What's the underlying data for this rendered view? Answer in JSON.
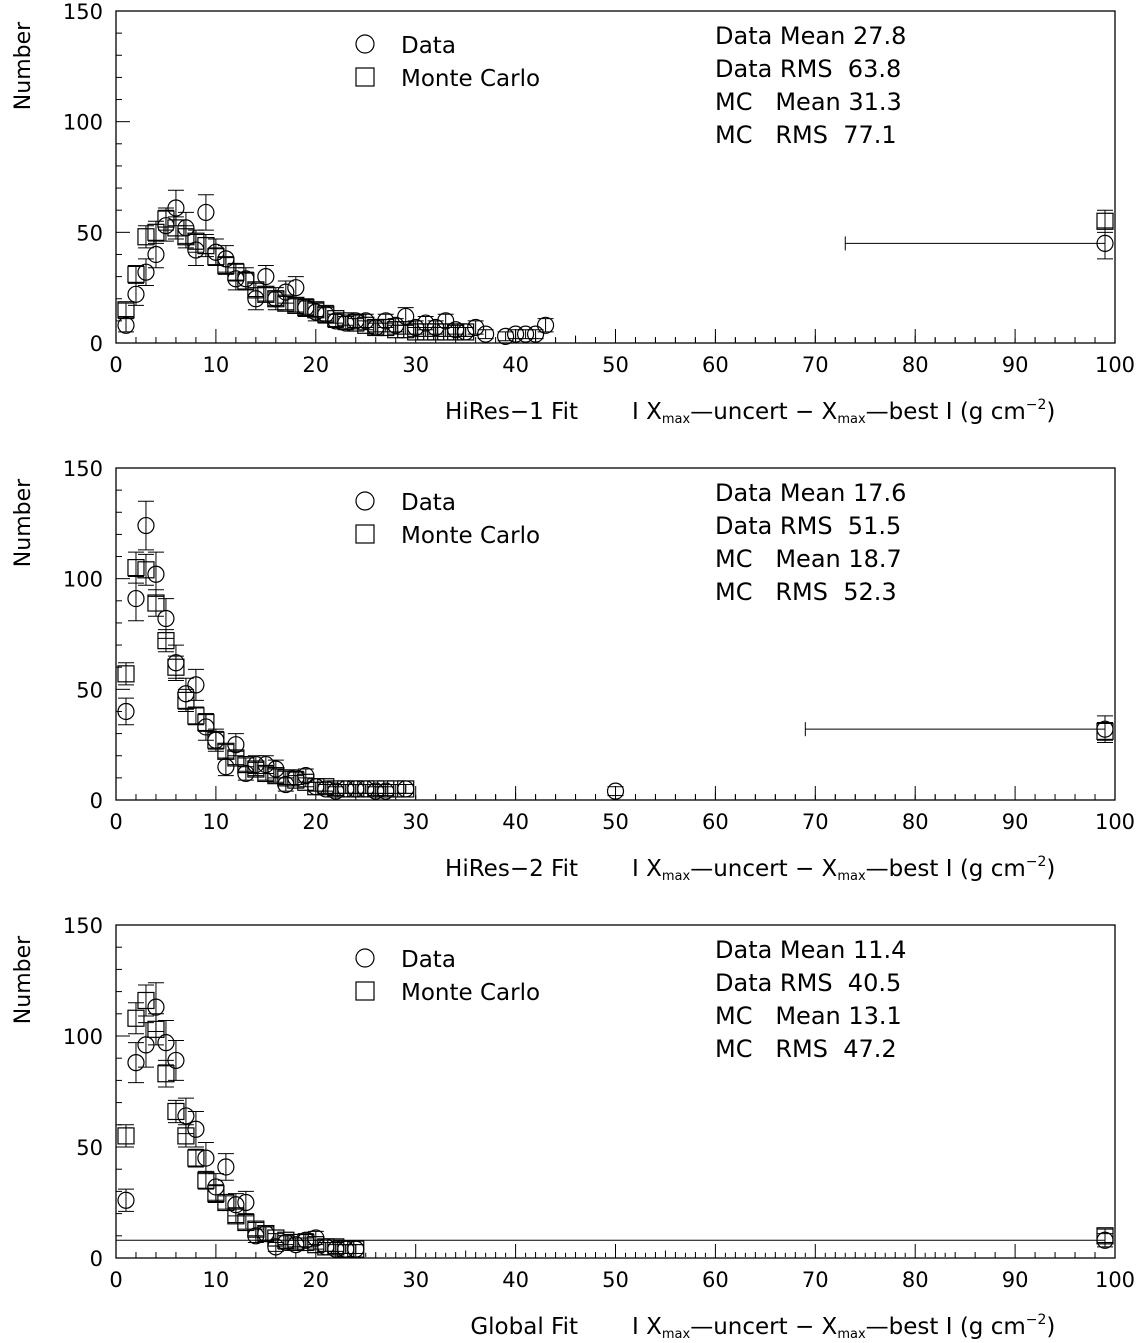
{
  "chart_data": [
    {
      "type": "scatter",
      "ylabel": "Number",
      "xlabel_prefix": "HiRes−1 Fit",
      "xlim": [
        0,
        100
      ],
      "ylim": [
        0,
        150
      ],
      "x_ticks": [
        "0",
        "10",
        "20",
        "30",
        "40",
        "50",
        "60",
        "70",
        "80",
        "90",
        "100"
      ],
      "y_ticks": [
        "0",
        "50",
        "100",
        "150"
      ],
      "legend": {
        "position": "top-center",
        "entries": [
          "Data",
          "Monte Carlo"
        ]
      },
      "stats": [
        "Data Mean 27.8",
        "Data RMS  63.8",
        "MC   Mean 31.3",
        "MC   RMS  77.1"
      ],
      "series": [
        {
          "name": "Data",
          "marker": "circle",
          "x": [
            1,
            2,
            3,
            4,
            5,
            6,
            7,
            8,
            9,
            10,
            11,
            12,
            13,
            14,
            15,
            16,
            17,
            18,
            19,
            20,
            21,
            22,
            23,
            24,
            25,
            26,
            27,
            28,
            29,
            30,
            31,
            32,
            33,
            34,
            35,
            36,
            37,
            39,
            40,
            41,
            42,
            43,
            99
          ],
          "y": [
            8,
            22,
            32,
            40,
            53,
            61,
            52,
            42,
            59,
            41,
            38,
            29,
            29,
            20,
            30,
            20,
            23,
            25,
            16,
            14,
            13,
            10,
            9,
            10,
            10,
            7,
            10,
            8,
            12,
            7,
            9,
            7,
            10,
            6,
            5,
            7,
            4,
            3,
            4,
            4,
            4,
            8,
            45
          ],
          "yerr": [
            3,
            5,
            6,
            6,
            7,
            8,
            7,
            7,
            8,
            6,
            6,
            5,
            5,
            5,
            5,
            5,
            5,
            5,
            4,
            4,
            4,
            3,
            3,
            3,
            3,
            3,
            3,
            3,
            4,
            3,
            3,
            3,
            3,
            2,
            2,
            3,
            2,
            2,
            2,
            2,
            2,
            3,
            7
          ]
        },
        {
          "name": "Monte Carlo",
          "marker": "square",
          "x": [
            1,
            2,
            3,
            4,
            5,
            6,
            7,
            8,
            9,
            10,
            11,
            12,
            13,
            14,
            15,
            16,
            17,
            18,
            19,
            20,
            21,
            22,
            23,
            24,
            25,
            26,
            27,
            28,
            29,
            30,
            31,
            32,
            33,
            34,
            35,
            99
          ],
          "y": [
            15,
            31,
            48,
            50,
            56,
            52,
            48,
            46,
            44,
            39,
            35,
            32,
            28,
            24,
            22,
            20,
            18,
            17,
            16,
            15,
            13,
            11,
            10,
            9,
            8,
            7,
            7,
            6,
            6,
            5,
            5,
            5,
            5,
            5,
            5,
            55
          ],
          "yerr": [
            3,
            4,
            5,
            5,
            5,
            5,
            5,
            5,
            5,
            4,
            4,
            4,
            4,
            3,
            3,
            3,
            3,
            3,
            3,
            3,
            3,
            2,
            2,
            2,
            2,
            2,
            2,
            2,
            2,
            2,
            2,
            2,
            2,
            2,
            2,
            5
          ]
        }
      ],
      "overflow_xrange": [
        73,
        99
      ],
      "stray_ticks_x": [
        40,
        42,
        44,
        46,
        48,
        50,
        52,
        54,
        56,
        58,
        60,
        62,
        64,
        66,
        68,
        70,
        72,
        74,
        76,
        78,
        80,
        82,
        84,
        86,
        88,
        90,
        92,
        94,
        96,
        98
      ],
      "stray_ticks_y": [
        1,
        1,
        1,
        2,
        1,
        1,
        1,
        1,
        1,
        1,
        2,
        1,
        1,
        1,
        1,
        2,
        1,
        1,
        1,
        1,
        2,
        1,
        1,
        1,
        1,
        1,
        1,
        1,
        1,
        1
      ]
    },
    {
      "type": "scatter",
      "ylabel": "Number",
      "xlabel_prefix": "HiRes−2 Fit",
      "xlim": [
        0,
        100
      ],
      "ylim": [
        0,
        150
      ],
      "x_ticks": [
        "0",
        "10",
        "20",
        "30",
        "40",
        "50",
        "60",
        "70",
        "80",
        "90",
        "100"
      ],
      "y_ticks": [
        "0",
        "50",
        "100",
        "150"
      ],
      "legend": {
        "position": "top-center",
        "entries": [
          "Data",
          "Monte Carlo"
        ]
      },
      "stats": [
        "Data Mean 17.6",
        "Data RMS  51.5",
        "MC   Mean 18.7",
        "MC   RMS  52.3"
      ],
      "series": [
        {
          "name": "Data",
          "marker": "circle",
          "x": [
            1,
            2,
            3,
            4,
            5,
            6,
            7,
            8,
            9,
            10,
            11,
            12,
            13,
            14,
            15,
            16,
            17,
            18,
            19,
            20,
            21,
            22,
            23,
            24,
            25,
            26,
            27,
            29,
            50,
            99
          ],
          "y": [
            40,
            91,
            124,
            102,
            82,
            62,
            48,
            52,
            33,
            27,
            15,
            25,
            12,
            16,
            16,
            14,
            7,
            10,
            11,
            6,
            5,
            4,
            5,
            5,
            5,
            4,
            4,
            5,
            4,
            32
          ],
          "yerr": [
            6,
            10,
            11,
            10,
            9,
            8,
            7,
            7,
            6,
            5,
            4,
            5,
            3,
            4,
            4,
            4,
            3,
            3,
            3,
            2,
            2,
            2,
            2,
            2,
            2,
            2,
            2,
            2,
            2,
            6
          ]
        },
        {
          "name": "Monte Carlo",
          "marker": "square",
          "x": [
            1,
            2,
            3,
            4,
            5,
            6,
            7,
            8,
            9,
            10,
            11,
            12,
            13,
            14,
            15,
            16,
            17,
            18,
            19,
            20,
            21,
            22,
            23,
            24,
            25,
            26,
            27,
            28,
            29,
            99
          ],
          "y": [
            57,
            105,
            104,
            89,
            72,
            60,
            45,
            38,
            35,
            27,
            22,
            19,
            16,
            14,
            12,
            11,
            10,
            9,
            8,
            6,
            6,
            5,
            5,
            5,
            5,
            5,
            5,
            5,
            5,
            31
          ],
          "yerr": [
            5,
            7,
            7,
            6,
            5,
            5,
            5,
            4,
            4,
            4,
            3,
            3,
            3,
            3,
            3,
            3,
            3,
            2,
            2,
            2,
            2,
            2,
            2,
            2,
            2,
            2,
            2,
            2,
            2,
            4
          ]
        }
      ],
      "overflow_xrange": [
        69,
        99
      ],
      "stray_ticks_x": [
        30,
        32,
        34,
        36,
        38,
        40,
        42,
        44,
        46,
        48,
        50,
        52,
        54,
        56,
        58,
        60,
        62,
        64,
        66,
        68,
        70,
        72,
        74,
        76,
        78,
        80,
        82,
        84,
        86,
        88
      ],
      "stray_ticks_y": [
        1,
        1,
        1,
        1,
        1,
        2,
        1,
        1,
        1,
        1,
        2,
        1,
        1,
        1,
        1,
        2,
        1,
        1,
        1,
        1,
        1,
        1,
        1,
        1,
        1,
        1,
        1,
        1,
        1,
        1
      ]
    },
    {
      "type": "scatter",
      "ylabel": "Number",
      "xlabel_prefix": "Global Fit",
      "xlim": [
        0,
        100
      ],
      "ylim": [
        0,
        150
      ],
      "x_ticks": [
        "0",
        "10",
        "20",
        "30",
        "40",
        "50",
        "60",
        "70",
        "80",
        "90",
        "100"
      ],
      "y_ticks": [
        "0",
        "50",
        "100",
        "150"
      ],
      "legend": {
        "position": "top-center",
        "entries": [
          "Data",
          "Monte Carlo"
        ]
      },
      "stats": [
        "Data Mean 11.4",
        "Data RMS  40.5",
        "MC   Mean 13.1",
        "MC   RMS  47.2"
      ],
      "series": [
        {
          "name": "Data",
          "marker": "circle",
          "x": [
            1,
            2,
            3,
            4,
            5,
            6,
            7,
            8,
            9,
            10,
            11,
            12,
            13,
            14,
            15,
            16,
            17,
            18,
            19,
            20,
            21,
            22,
            23,
            24,
            99
          ],
          "y": [
            26,
            88,
            96,
            113,
            97,
            89,
            64,
            58,
            45,
            32,
            41,
            24,
            25,
            10,
            11,
            5,
            7,
            6,
            8,
            9,
            5,
            4,
            4,
            4,
            8
          ],
          "yerr": [
            5,
            9,
            10,
            11,
            10,
            9,
            8,
            8,
            7,
            6,
            6,
            5,
            5,
            3,
            3,
            2,
            3,
            2,
            3,
            3,
            2,
            2,
            2,
            2,
            3
          ]
        },
        {
          "name": "Monte Carlo",
          "marker": "square",
          "x": [
            1,
            2,
            3,
            4,
            5,
            6,
            7,
            8,
            9,
            10,
            11,
            12,
            13,
            14,
            15,
            16,
            17,
            18,
            19,
            20,
            21,
            22,
            23,
            24,
            99
          ],
          "y": [
            55,
            108,
            116,
            103,
            83,
            66,
            55,
            45,
            35,
            29,
            25,
            19,
            16,
            13,
            11,
            9,
            8,
            7,
            7,
            6,
            5,
            5,
            4,
            4,
            10
          ],
          "yerr": [
            5,
            7,
            7,
            7,
            6,
            5,
            5,
            4,
            4,
            4,
            3,
            3,
            3,
            3,
            3,
            2,
            2,
            2,
            2,
            2,
            2,
            2,
            2,
            2,
            3
          ]
        }
      ],
      "overflow_xrange": [
        0,
        99
      ],
      "stray_ticks_x": [
        25,
        27,
        29,
        31,
        33,
        35,
        37,
        39,
        41,
        43,
        45,
        47,
        49,
        51,
        53,
        55,
        57,
        59,
        61,
        63,
        65,
        67,
        69,
        71,
        73,
        75,
        77,
        79,
        81,
        83
      ],
      "stray_ticks_y": [
        1,
        1,
        1,
        1,
        1,
        2,
        1,
        1,
        1,
        1,
        1,
        1,
        1,
        1,
        1,
        2,
        1,
        1,
        1,
        1,
        1,
        1,
        1,
        1,
        1,
        1,
        1,
        1,
        1,
        1
      ]
    }
  ],
  "xlabel_formula": {
    "bar": "I",
    "x": "X",
    "sub": "max",
    "uncert": "uncert",
    "minus": "−",
    "best": "best",
    "unit": "(g cm",
    "exp": "−2",
    "close": ")"
  }
}
